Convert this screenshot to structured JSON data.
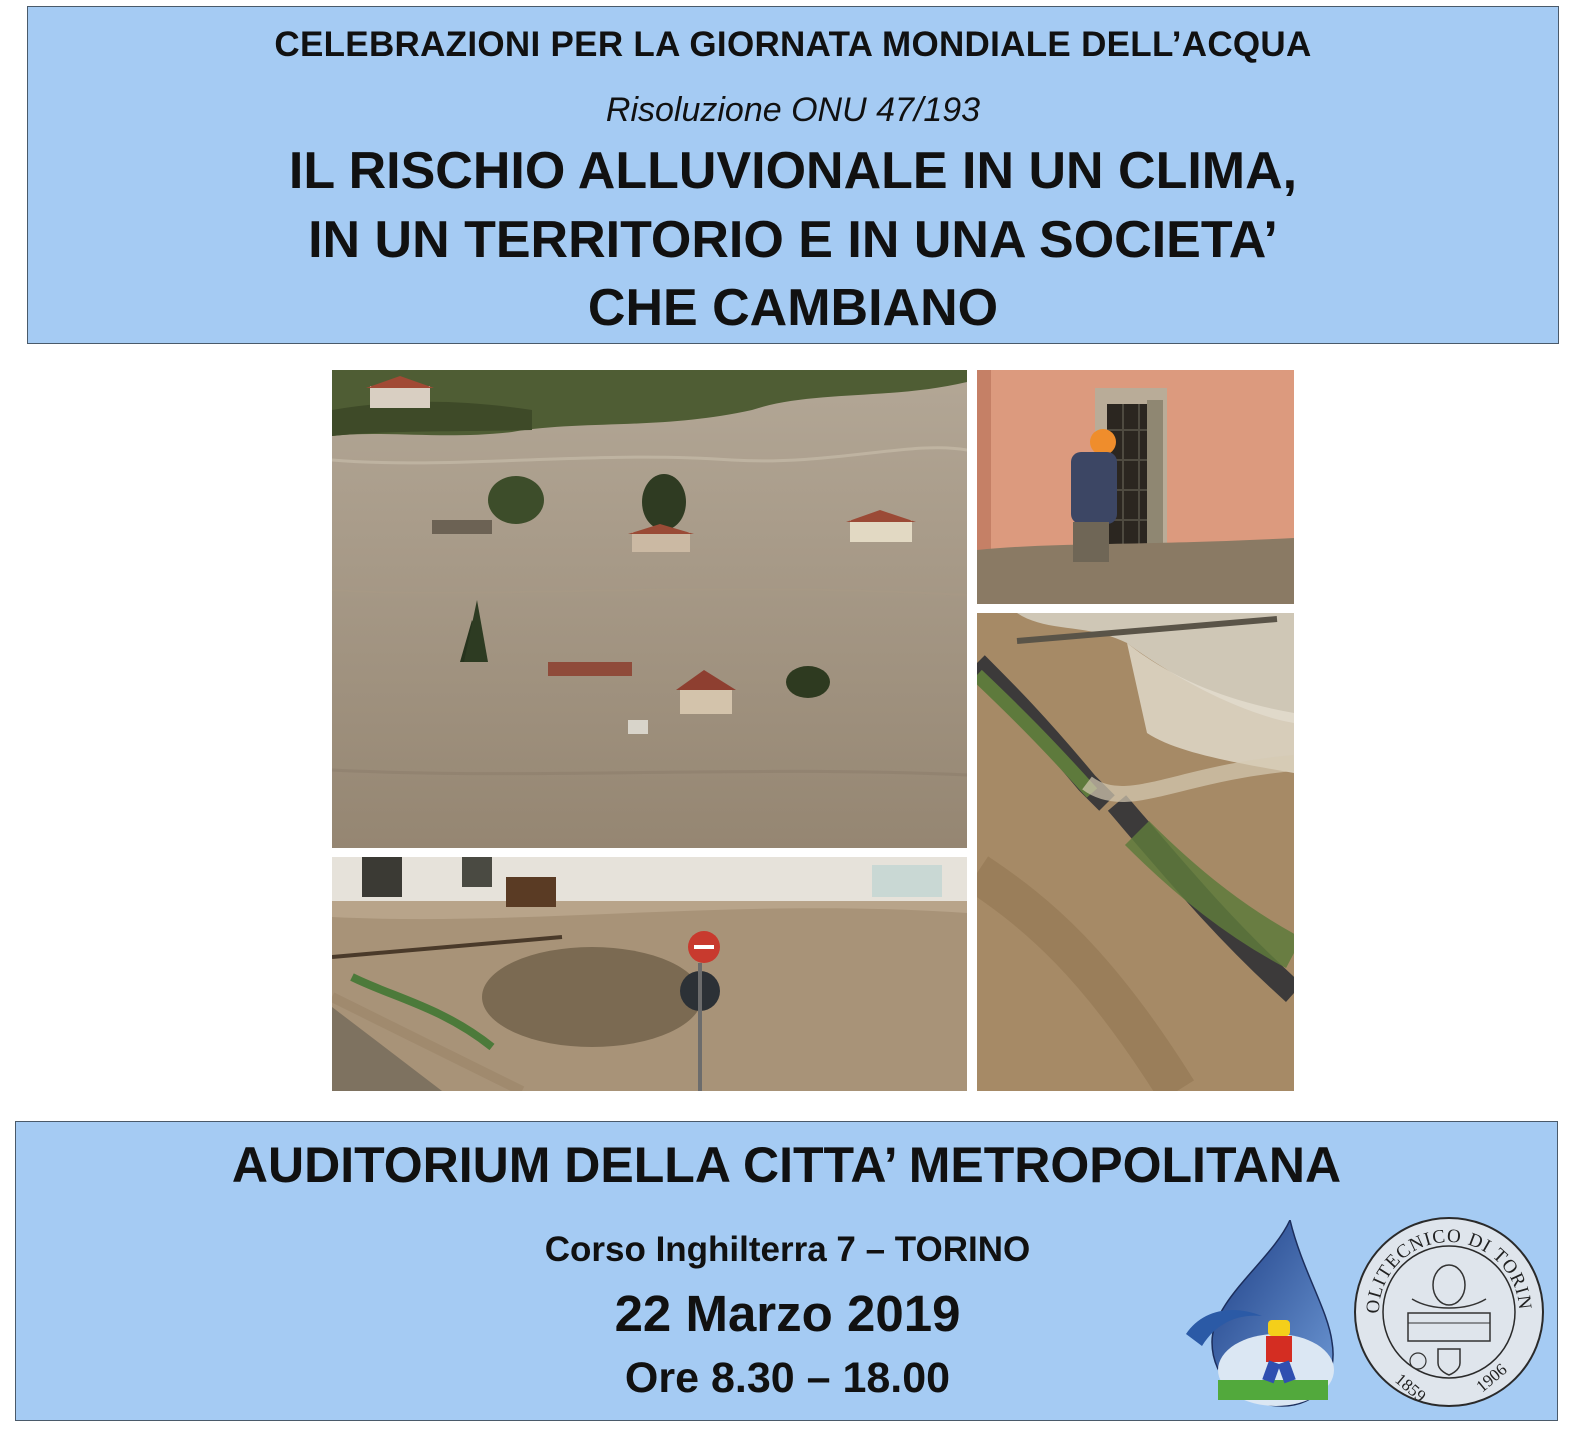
{
  "header": {
    "supertitle": "CELEBRAZIONI PER LA GIORNATA MONDIALE DELL’ACQUA",
    "subtitle": "Risoluzione ONU 47/193",
    "title_lines": [
      "IL RISCHIO ALLUVIONALE IN UN CLIMA,",
      "IN UN TERRITORIO E IN UNA SOCIETA’",
      "CHE CAMBIANO"
    ]
  },
  "photos": [
    {
      "id": "flooded-plain",
      "icon": "flood-photo"
    },
    {
      "id": "man-at-window",
      "icon": "flood-photo"
    },
    {
      "id": "mudslide-street",
      "icon": "flood-photo"
    },
    {
      "id": "collapsed-road",
      "icon": "flood-photo"
    }
  ],
  "footer": {
    "venue": "AUDITORIUM DELLA CITTA’ METROPOLITANA",
    "address": "Corso Inghilterra 7 – TORINO",
    "date": "22 Marzo 2019",
    "hours": "Ore 8.30 – 18.00"
  },
  "logos": {
    "polito_text": "POLITECNICO DI TORINO",
    "polito_year_left": "1859",
    "polito_year_right": "1906"
  },
  "colors": {
    "box_background": "#a5cbf3",
    "flood_water": "#9c8e7c",
    "drop_blue": "#2f5fa8"
  }
}
